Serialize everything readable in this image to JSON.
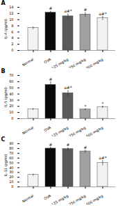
{
  "chart_data": [
    {
      "type": "bar",
      "title": "A",
      "ylabel": "IL-4 (pg/ml)",
      "categories": [
        "Normal",
        "OVA",
        "125 mg/kg",
        "250 mg/kg",
        "500 mg/kg"
      ],
      "values": [
        7.3,
        12.3,
        11.1,
        11.7,
        10.5
      ],
      "errors": [
        0.3,
        0.4,
        0.7,
        0.6,
        0.5
      ],
      "colors": [
        "#f2f2f2",
        "#0a0a0a",
        "#5a5a5a",
        "#a0a0a0",
        "#f2f2f2"
      ],
      "annotations": [
        null,
        "#",
        "a#*",
        "#",
        "a#*"
      ],
      "ylim": [
        0,
        14
      ],
      "yticks": [
        0,
        2,
        4,
        6,
        8,
        10,
        12,
        14
      ],
      "grid": false
    },
    {
      "type": "bar",
      "title": "B",
      "ylabel": "IL-5 (pg/ml)",
      "categories": [
        "Normal",
        "OVA",
        "125 mg/kg",
        "250 mg/kg",
        "500 mg/kg"
      ],
      "values": [
        15.5,
        55.0,
        41.5,
        15.0,
        19.0
      ],
      "errors": [
        0.8,
        4.5,
        4.0,
        0.7,
        1.2
      ],
      "colors": [
        "#f2f2f2",
        "#0a0a0a",
        "#5a5a5a",
        "#a0a0a0",
        "#f2f2f2"
      ],
      "annotations": [
        null,
        "#",
        "a#*",
        "*",
        "*"
      ],
      "ylim": [
        0,
        70
      ],
      "yticks": [
        0,
        10,
        20,
        30,
        40,
        50,
        60,
        70
      ],
      "grid": false
    },
    {
      "type": "bar",
      "title": "C",
      "ylabel": "IL-13 (pg/ml)",
      "categories": [
        "Normal",
        "OVA",
        "125 mg/kg",
        "250 mg/kg",
        "500 mg/kg"
      ],
      "values": [
        25.0,
        80.0,
        79.0,
        74.0,
        50.0
      ],
      "errors": [
        1.5,
        2.5,
        2.5,
        2.5,
        4.5
      ],
      "colors": [
        "#f2f2f2",
        "#0a0a0a",
        "#5a5a5a",
        "#a0a0a0",
        "#f2f2f2"
      ],
      "annotations": [
        null,
        "#",
        "#",
        "#",
        "a#*"
      ],
      "ylim": [
        0,
        90
      ],
      "yticks": [
        0,
        10,
        20,
        30,
        40,
        50,
        60,
        70,
        80,
        90
      ],
      "grid": false
    }
  ]
}
